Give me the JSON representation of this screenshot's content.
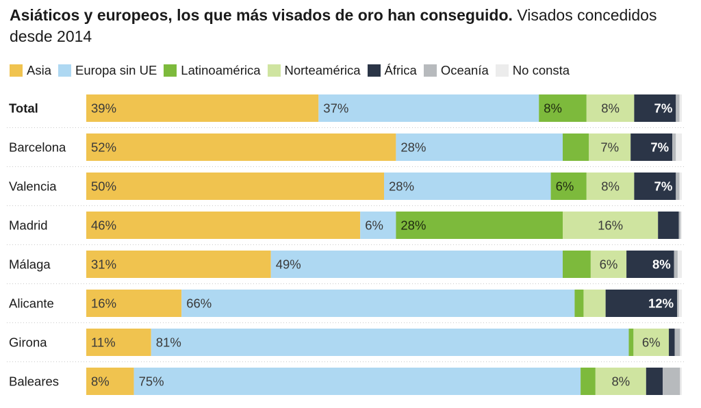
{
  "title": {
    "bold": "Asiáticos y europeos, los que más visados de oro han conseguido.",
    "rest": " Visados concedidos desde 2014"
  },
  "legend": [
    {
      "label": "Asia",
      "color": "#f0c34f"
    },
    {
      "label": "Europa sin UE",
      "color": "#aed8f2"
    },
    {
      "label": "Latinoamérica",
      "color": "#7dba3c"
    },
    {
      "label": "Norteamérica",
      "color": "#cfe4a0"
    },
    {
      "label": "África",
      "color": "#2b3547"
    },
    {
      "label": "Oceanía",
      "color": "#b7babd"
    },
    {
      "label": "No consta",
      "color": "#ececec"
    }
  ],
  "chart_data": {
    "type": "bar",
    "orientation": "horizontal",
    "stacked": true,
    "unit": "%",
    "categories": [
      "Total",
      "Barcelona",
      "Valencia",
      "Madrid",
      "Málaga",
      "Alicante",
      "Girona",
      "Baleares"
    ],
    "series": [
      {
        "name": "Asia",
        "color": "#f0c34f",
        "values": [
          39,
          52,
          50,
          46,
          31,
          16,
          11,
          8
        ],
        "labels": [
          "39%",
          "52%",
          "50%",
          "46%",
          "31%",
          "16%",
          "11%",
          "8%"
        ]
      },
      {
        "name": "Europa sin UE",
        "color": "#aed8f2",
        "values": [
          37,
          28,
          28,
          6,
          49,
          66,
          81,
          75
        ],
        "labels": [
          "37%",
          "28%",
          "28%",
          "6%",
          "49%",
          "66%",
          "81%",
          "75%"
        ]
      },
      {
        "name": "Latinoamérica",
        "color": "#7dba3c",
        "values": [
          8,
          4.4,
          6,
          28,
          4.7,
          1.5,
          0.8,
          2.5
        ],
        "labels": [
          "8%",
          "",
          "6%",
          "28%",
          "",
          "",
          "",
          ""
        ]
      },
      {
        "name": "Norteamérica",
        "color": "#cfe4a0",
        "values": [
          8,
          7,
          8,
          16,
          6,
          3.7,
          6,
          8.5
        ],
        "labels": [
          "8%",
          "7%",
          "8%",
          "16%",
          "6%",
          "",
          "6%",
          "8%"
        ]
      },
      {
        "name": "África",
        "color": "#2b3547",
        "values": [
          7,
          7,
          7,
          3.5,
          8,
          12,
          1,
          2.8
        ],
        "labels": [
          "7%",
          "7%",
          "7%",
          "",
          "8%",
          "12%",
          "",
          ""
        ]
      },
      {
        "name": "Oceanía",
        "color": "#b7babd",
        "values": [
          0.6,
          0.6,
          0.6,
          0.3,
          0.6,
          0.3,
          0.9,
          2.9
        ],
        "labels": [
          "",
          "",
          "",
          "",
          "",
          "",
          "",
          ""
        ]
      },
      {
        "name": "No consta",
        "color": "#ececec",
        "values": [
          0.4,
          1,
          0.4,
          0.2,
          0.7,
          0.5,
          0.3,
          0.3
        ],
        "labels": [
          "",
          "",
          "",
          "",
          "",
          "",
          "",
          ""
        ]
      }
    ],
    "label_colors": {
      "Asia": "#3a3a3a",
      "Europa sin UE": "#3a3a3a",
      "Latinoamérica": "#1f2a10",
      "Norteamérica": "#3a3a3a",
      "África": "#ffffff"
    },
    "bold_category": "Total",
    "xlim": [
      0,
      100
    ],
    "grid": false,
    "legend_position": "top"
  }
}
